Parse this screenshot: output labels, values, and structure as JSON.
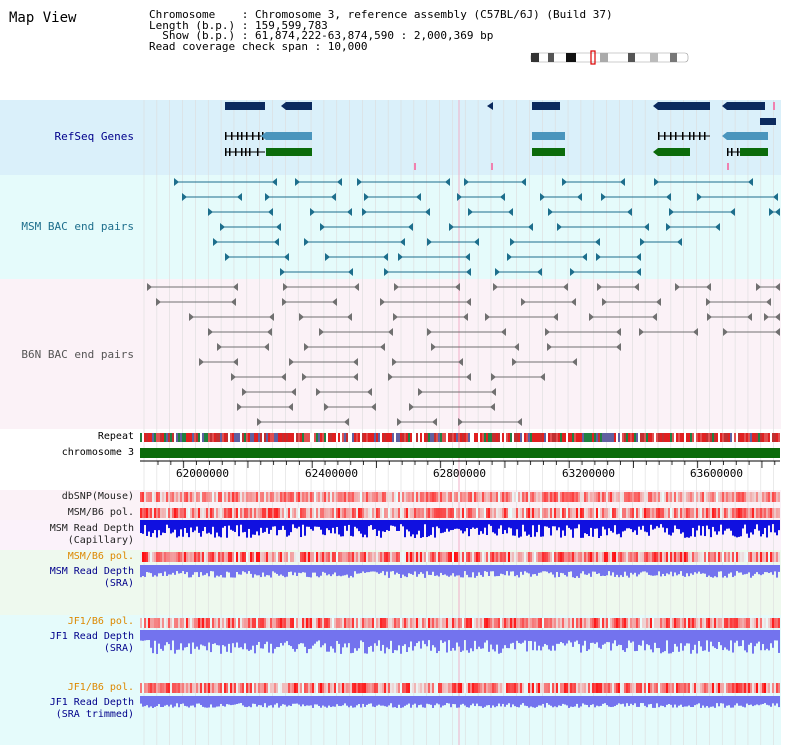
{
  "header": {
    "view_title": "Map View",
    "info_lines": [
      "Chromosome    : Chromosome 3, reference assembly (C57BL/6J) (Build 37)",
      "Length (b.p.) : 159,599,783",
      "  Show (b.p.) : 61,874,222-63,874,590 : 2,000,369 bp",
      "Read coverage check span : 10,000"
    ]
  },
  "tracks": {
    "refseq": "RefSeq Genes",
    "msm_bac": "MSM BAC end pairs",
    "b6n_bac": "B6N BAC end pairs",
    "repeat": "Repeat",
    "chromosome": "chromosome 3",
    "dbsnp": "dbSNP(Mouse)",
    "msm_b6_pol_1": "MSM/B6 pol.",
    "msm_read_depth_cap_1": "MSM Read Depth",
    "msm_read_depth_cap_2": "(Capillary)",
    "msm_b6_pol_2": "MSM/B6 pol.",
    "msm_read_depth_sra_1": "MSM Read Depth",
    "msm_read_depth_sra_2": "(SRA)",
    "jf1_b6_pol_1": "JF1/B6 pol.",
    "jf1_read_depth_sra_1": "JF1 Read Depth",
    "jf1_read_depth_sra_2": "(SRA)",
    "jf1_b6_pol_2": "JF1/B6 pol.",
    "jf1_read_depth_trim_1": "JF1 Read Depth",
    "jf1_read_depth_trim_2": "(SRA trimmed)"
  },
  "axis": {
    "ticks": [
      "62000000",
      "62400000",
      "62800000",
      "63200000",
      "63600000"
    ]
  },
  "colors": {
    "refseq_bg": "#daf0fa",
    "msm_bac_bg": "#e5fbfb",
    "b6n_bac_bg": "#fbf2f7",
    "navy": "#0b2a5e",
    "steel": "#4a95bd",
    "green": "#0b6b0b",
    "teal": "#1d6e8c",
    "gray": "#707070",
    "depth_blue": "#1010e0",
    "depth_light": "#7373ee",
    "label_blue": "#00008b",
    "label_orange": "#dd8800"
  }
}
